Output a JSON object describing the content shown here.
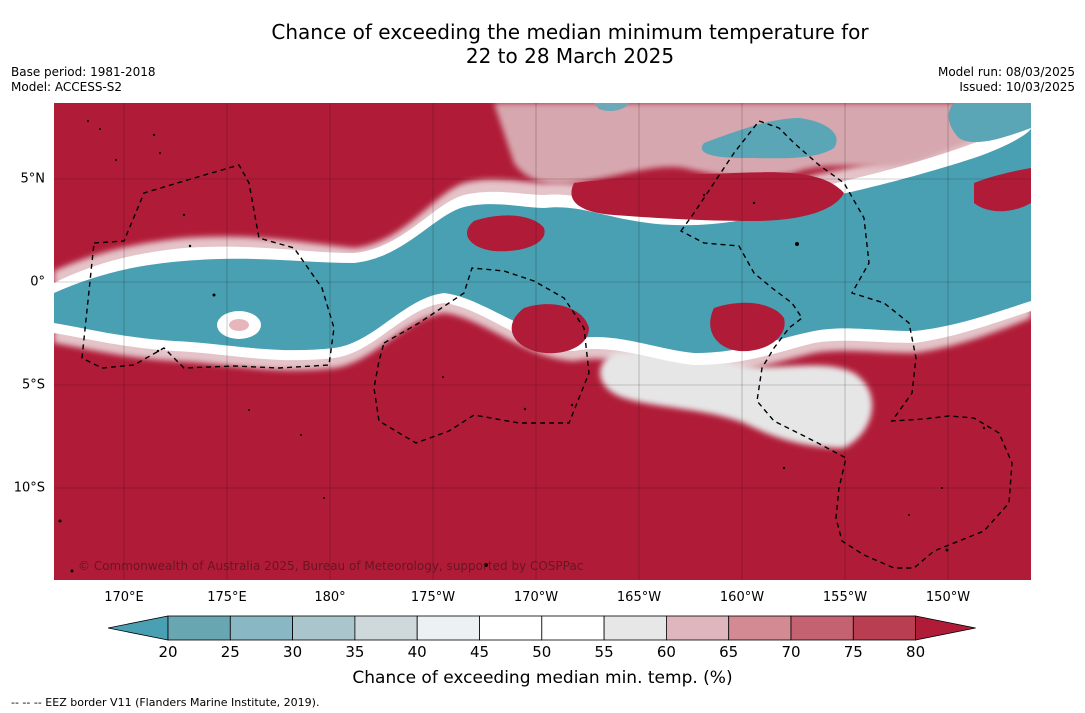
{
  "header": {
    "title_line1": "Chance of exceeding the median minimum temperature for",
    "title_line2": "22 to 28 March 2025",
    "base_period": "Base period: 1981-2018",
    "model": "Model: ACCESS-S2",
    "model_run": "Model run: 08/03/2025",
    "issued": "Issued: 10/03/2025"
  },
  "map": {
    "copyright": "© Commonwealth of Australia 2025, Bureau of Meteorology, supported by COSPPac",
    "lat_labels": [
      "5°N",
      "0°",
      "5°S",
      "10°S"
    ],
    "lon_labels": [
      "170°E",
      "175°E",
      "180°",
      "175°W",
      "170°W",
      "165°W",
      "160°W",
      "155°W",
      "150°W"
    ],
    "colors": {
      "high": "#b01c38",
      "low": "#4aa0b3",
      "neutral": "#ffffff"
    }
  },
  "colorbar": {
    "ticks": [
      "20",
      "25",
      "30",
      "35",
      "40",
      "45",
      "50",
      "55",
      "60",
      "65",
      "70",
      "75",
      "80"
    ],
    "colors": [
      "#4aa0b3",
      "#68a6b2",
      "#89b7c3",
      "#aac6cc",
      "#cfd8da",
      "#ecf1f4",
      "#ffffff",
      "#ffffff",
      "#e7e7e7",
      "#dfb6bd",
      "#d48a93",
      "#c56271",
      "#b93e52",
      "#b01c38"
    ],
    "label": "Chance of exceeding median min. temp. (%)"
  },
  "footer": {
    "eez_note": "--  --  -- EEZ border V11 (Flanders Marine Institute, 2019)."
  }
}
